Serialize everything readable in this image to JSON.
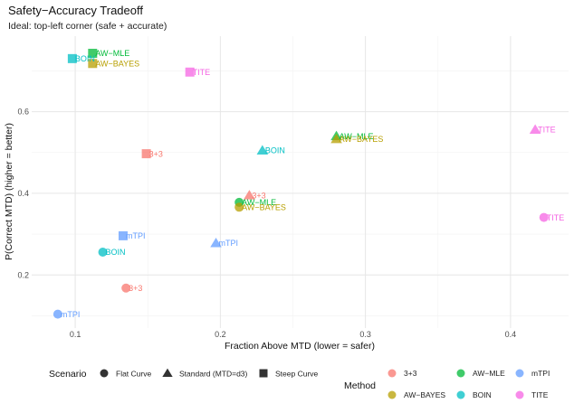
{
  "chart_data": {
    "type": "scatter",
    "title": "Safety−Accuracy Tradeoff",
    "subtitle": "Ideal: top-left corner (safe + accurate)",
    "xlabel": "Fraction Above MTD (lower = safer)",
    "ylabel": "P(Correct MTD) (higher = better)",
    "xlim": [
      0.07,
      0.44
    ],
    "ylim": [
      0.07,
      0.785
    ],
    "x_ticks": [
      0.1,
      0.2,
      0.3,
      0.4
    ],
    "x_tick_labels": [
      "0.1",
      "0.2",
      "0.3",
      "0.4"
    ],
    "y_ticks": [
      0.2,
      0.4,
      0.6
    ],
    "y_tick_labels": [
      "0.2",
      "0.4",
      "0.6"
    ],
    "grid": true,
    "legend_scenario_title": "Scenario",
    "legend_method_title": "Method",
    "scenarios": [
      {
        "key": "flat",
        "label": "Flat Curve",
        "shape": "circle"
      },
      {
        "key": "standard",
        "label": "Standard (MTD=d3)",
        "shape": "triangle"
      },
      {
        "key": "steep",
        "label": "Steep Curve",
        "shape": "square"
      }
    ],
    "methods": [
      {
        "key": "3+3",
        "label": "3+3",
        "color": "#F8766D"
      },
      {
        "key": "AW-MLE",
        "label": "AW−MLE",
        "color": "#00BA38"
      },
      {
        "key": "mTPI",
        "label": "mTPI",
        "color": "#619CFF"
      },
      {
        "key": "AW-BAYES",
        "label": "AW−BAYES",
        "color": "#B79F00"
      },
      {
        "key": "BOIN",
        "label": "BOIN",
        "color": "#00BFC4"
      },
      {
        "key": "TITE",
        "label": "TITE",
        "color": "#F564E3"
      }
    ],
    "points": [
      {
        "method": "3+3",
        "scenario": "flat",
        "x": 0.135,
        "y": 0.168,
        "label": "3+3"
      },
      {
        "method": "3+3",
        "scenario": "standard",
        "x": 0.22,
        "y": 0.395,
        "label": "3+3"
      },
      {
        "method": "3+3",
        "scenario": "steep",
        "x": 0.149,
        "y": 0.497,
        "label": "3+3"
      },
      {
        "method": "AW-MLE",
        "scenario": "flat",
        "x": 0.213,
        "y": 0.378,
        "label": "AW−MLE"
      },
      {
        "method": "AW-MLE",
        "scenario": "standard",
        "x": 0.28,
        "y": 0.54,
        "label": "AW−MLE"
      },
      {
        "method": "AW-MLE",
        "scenario": "steep",
        "x": 0.112,
        "y": 0.743,
        "label": "AW−MLE"
      },
      {
        "method": "AW-BAYES",
        "scenario": "flat",
        "x": 0.213,
        "y": 0.366,
        "label": "AW−BAYES"
      },
      {
        "method": "AW-BAYES",
        "scenario": "standard",
        "x": 0.28,
        "y": 0.533,
        "label": "AW−BAYES"
      },
      {
        "method": "AW-BAYES",
        "scenario": "steep",
        "x": 0.112,
        "y": 0.718,
        "label": "AW−BAYES"
      },
      {
        "method": "BOIN",
        "scenario": "flat",
        "x": 0.119,
        "y": 0.256,
        "label": "BOIN"
      },
      {
        "method": "BOIN",
        "scenario": "standard",
        "x": 0.229,
        "y": 0.505,
        "label": "BOIN"
      },
      {
        "method": "BOIN",
        "scenario": "steep",
        "x": 0.098,
        "y": 0.73,
        "label": "BOIN"
      },
      {
        "method": "mTPI",
        "scenario": "flat",
        "x": 0.088,
        "y": 0.104,
        "label": "mTPI"
      },
      {
        "method": "mTPI",
        "scenario": "standard",
        "x": 0.197,
        "y": 0.278,
        "label": "mTPI"
      },
      {
        "method": "mTPI",
        "scenario": "steep",
        "x": 0.133,
        "y": 0.296,
        "label": "mTPI"
      },
      {
        "method": "TITE",
        "scenario": "flat",
        "x": 0.423,
        "y": 0.341,
        "label": "TITE"
      },
      {
        "method": "TITE",
        "scenario": "standard",
        "x": 0.417,
        "y": 0.556,
        "label": "TITE"
      },
      {
        "method": "TITE",
        "scenario": "steep",
        "x": 0.179,
        "y": 0.697,
        "label": "TITE"
      }
    ]
  }
}
